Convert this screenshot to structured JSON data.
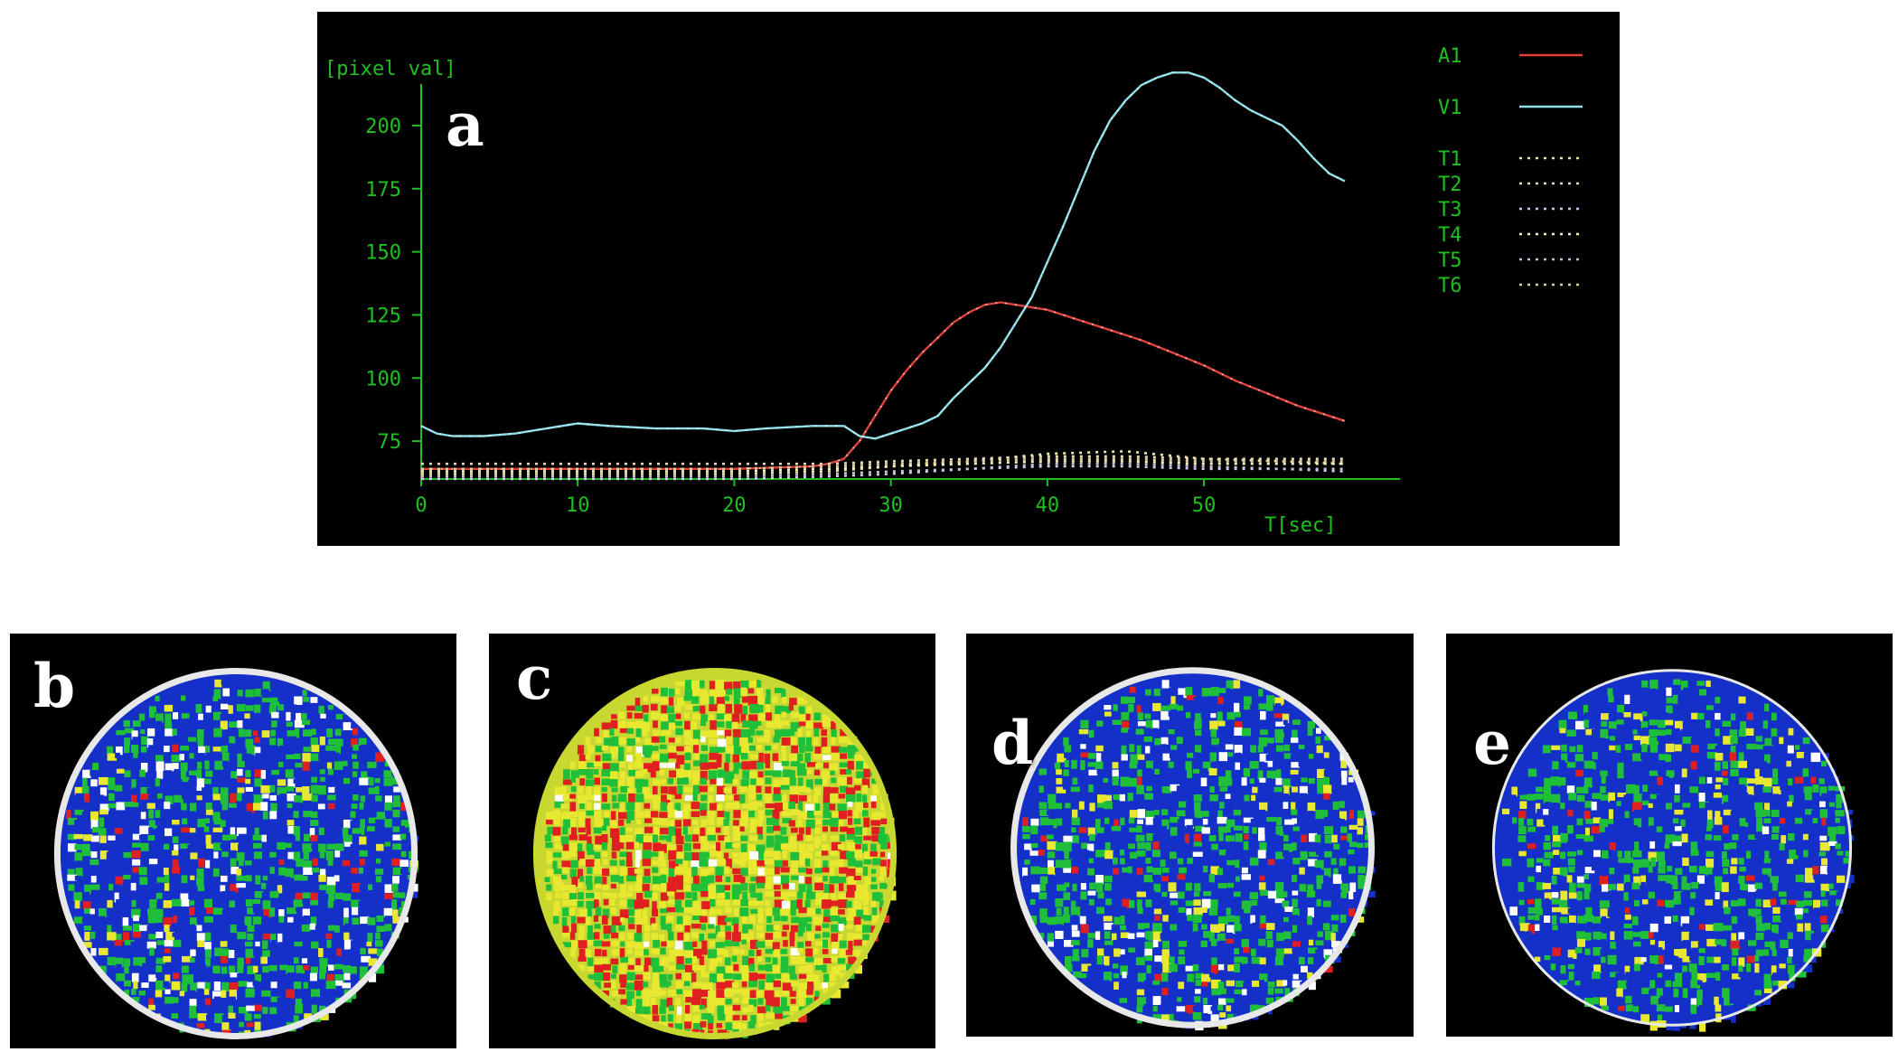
{
  "figure": {
    "panel_labels": [
      "a",
      "b",
      "c",
      "d",
      "e"
    ],
    "colors": {
      "background": "#000000",
      "axis": "#1fbf1f",
      "text": "#1fbf1f",
      "A1": "#e0423a",
      "V1": "#8fe0e8",
      "tissue": [
        "#ffffff",
        "#e8d890",
        "#d8c8a0",
        "#f0e0a0",
        "#c8b8a8",
        "#b8a8d0"
      ],
      "map_palette": [
        "#1530c8",
        "#1fbf3a",
        "#e8e830",
        "#e02020",
        "#ffffff"
      ]
    }
  },
  "chart_data": {
    "type": "line",
    "title": "",
    "xlabel": "T[sec]",
    "ylabel": "[pixel val]",
    "xlim": [
      0,
      60
    ],
    "ylim": [
      55,
      225
    ],
    "xticks": [
      0,
      10,
      20,
      30,
      40,
      50
    ],
    "yticks": [
      75,
      100,
      125,
      150,
      175,
      200
    ],
    "legend_position": "right",
    "grid": false,
    "legend": [
      "A1",
      "V1",
      "T1",
      "T2",
      "T3",
      "T4",
      "T5",
      "T6"
    ],
    "series": [
      {
        "name": "A1",
        "style": "solid",
        "x": [
          0,
          5,
          10,
          15,
          20,
          25,
          26,
          27,
          28,
          29,
          30,
          31,
          32,
          33,
          34,
          35,
          36,
          37,
          38,
          39,
          40,
          42,
          44,
          46,
          48,
          50,
          52,
          54,
          56,
          58,
          59
        ],
        "y": [
          64,
          64,
          64,
          64,
          64,
          65,
          66,
          68,
          75,
          85,
          95,
          103,
          110,
          116,
          122,
          126,
          129,
          130,
          129,
          128,
          127,
          123,
          119,
          115,
          110,
          105,
          99,
          94,
          89,
          85,
          83
        ]
      },
      {
        "name": "V1",
        "style": "solid",
        "x": [
          0,
          1,
          2,
          4,
          6,
          8,
          10,
          12,
          15,
          18,
          20,
          22,
          25,
          26,
          27,
          28,
          29,
          30,
          31,
          32,
          33,
          34,
          35,
          36,
          37,
          38,
          39,
          40,
          41,
          42,
          43,
          44,
          45,
          46,
          47,
          48,
          49,
          50,
          51,
          52,
          53,
          54,
          55,
          56,
          57,
          58,
          59
        ],
        "y": [
          81,
          78,
          77,
          77,
          78,
          80,
          82,
          81,
          80,
          80,
          79,
          80,
          81,
          81,
          81,
          77,
          76,
          78,
          80,
          82,
          85,
          92,
          98,
          104,
          112,
          122,
          132,
          146,
          160,
          175,
          190,
          202,
          210,
          216,
          219,
          221,
          221,
          219,
          215,
          210,
          206,
          203,
          200,
          194,
          187,
          181,
          178
        ]
      },
      {
        "name": "T1",
        "style": "dotted",
        "x": [
          0,
          10,
          20,
          26,
          30,
          35,
          40,
          45,
          50,
          55,
          59
        ],
        "y": [
          62,
          62,
          62,
          63,
          65,
          67,
          70,
          71,
          68,
          67,
          66
        ]
      },
      {
        "name": "T2",
        "style": "dotted",
        "x": [
          0,
          10,
          20,
          26,
          30,
          35,
          40,
          45,
          50,
          55,
          59
        ],
        "y": [
          66,
          66,
          66,
          66,
          67,
          68,
          69,
          69,
          68,
          68,
          68
        ]
      },
      {
        "name": "T3",
        "style": "dotted",
        "x": [
          0,
          10,
          20,
          26,
          30,
          35,
          40,
          45,
          50,
          55,
          59
        ],
        "y": [
          60,
          60,
          60,
          61,
          62,
          64,
          65,
          65,
          64,
          64,
          63
        ]
      },
      {
        "name": "T4",
        "style": "dotted",
        "x": [
          0,
          10,
          20,
          26,
          30,
          35,
          40,
          45,
          50,
          55,
          59
        ],
        "y": [
          63,
          63,
          63,
          64,
          65,
          66,
          67,
          67,
          66,
          66,
          66
        ]
      },
      {
        "name": "T5",
        "style": "dotted",
        "x": [
          0,
          10,
          20,
          26,
          30,
          35,
          40,
          45,
          50,
          55,
          59
        ],
        "y": [
          61,
          61,
          61,
          62,
          63,
          64,
          66,
          66,
          65,
          64,
          64
        ]
      },
      {
        "name": "T6",
        "style": "dotted",
        "x": [
          0,
          10,
          20,
          26,
          30,
          35,
          40,
          45,
          50,
          55,
          59
        ],
        "y": [
          64,
          64,
          64,
          65,
          66,
          67,
          68,
          68,
          67,
          67,
          67
        ]
      }
    ]
  }
}
